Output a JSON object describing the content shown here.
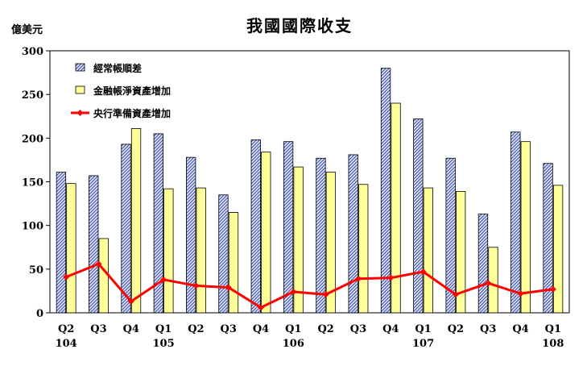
{
  "chart_data": {
    "type": "bar",
    "title": "我國國際收支",
    "ylabel": "億美元",
    "ylim": [
      0,
      300
    ],
    "yticks": [
      0,
      50,
      100,
      150,
      200,
      250,
      300
    ],
    "grid": false,
    "legend_placement": "top-left",
    "categories": [
      "Q2",
      "Q3",
      "Q4",
      "Q1",
      "Q2",
      "Q3",
      "Q4",
      "Q1",
      "Q2",
      "Q3",
      "Q4",
      "Q1",
      "Q2",
      "Q3",
      "Q4",
      "Q1"
    ],
    "year_labels": [
      {
        "index": 0,
        "label": "104"
      },
      {
        "index": 3,
        "label": "105"
      },
      {
        "index": 7,
        "label": "106"
      },
      {
        "index": 11,
        "label": "107"
      },
      {
        "index": 15,
        "label": "108"
      }
    ],
    "series": [
      {
        "name": "經常帳順差",
        "kind": "bar",
        "color": "#7f8fc8",
        "pattern": "diagonal-hatch",
        "values": [
          161,
          157,
          193,
          205,
          178,
          135,
          198,
          196,
          177,
          181,
          280,
          222,
          177,
          113,
          207,
          171
        ]
      },
      {
        "name": "金融帳淨資產增加",
        "kind": "bar",
        "color": "#ffff99",
        "values": [
          148,
          85,
          211,
          142,
          143,
          115,
          184,
          167,
          161,
          147,
          240,
          143,
          139,
          75,
          196,
          146
        ]
      },
      {
        "name": "央行準備資產增加",
        "kind": "line",
        "color": "#ff0000",
        "values": [
          41,
          56,
          13,
          38,
          31,
          29,
          6,
          24,
          21,
          39,
          40,
          47,
          21,
          34,
          22,
          27
        ]
      }
    ]
  }
}
